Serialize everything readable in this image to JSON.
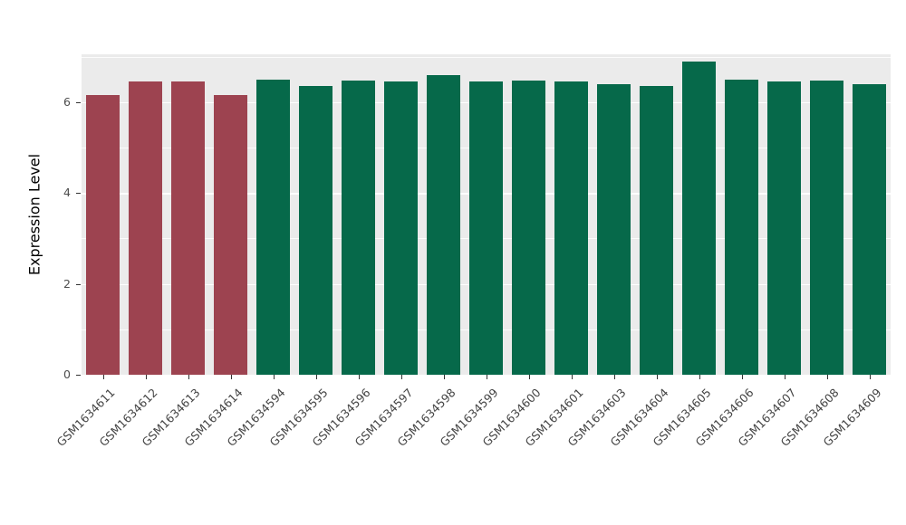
{
  "chart_data": {
    "type": "bar",
    "title": "",
    "xlabel": "",
    "ylabel": "Expression Level",
    "ylim": [
      0,
      7.05
    ],
    "yticks": [
      0,
      2,
      4,
      6
    ],
    "yticks_minor": [
      1,
      3,
      5,
      7
    ],
    "grid": true,
    "legend_position": "none",
    "panel_bg": "#EBEBEB",
    "grid_color": "#FFFFFF",
    "categories": [
      "GSM1634611",
      "GSM1634612",
      "GSM1634613",
      "GSM1634614",
      "GSM1634594",
      "GSM1634595",
      "GSM1634596",
      "GSM1634597",
      "GSM1634598",
      "GSM1634599",
      "GSM1634600",
      "GSM1634601",
      "GSM1634603",
      "GSM1634604",
      "GSM1634605",
      "GSM1634606",
      "GSM1634607",
      "GSM1634608",
      "GSM1634609"
    ],
    "values": [
      6.15,
      6.45,
      6.45,
      6.15,
      6.5,
      6.35,
      6.48,
      6.45,
      6.6,
      6.45,
      6.48,
      6.45,
      6.4,
      6.35,
      6.9,
      6.5,
      6.45,
      6.48,
      6.4
    ],
    "bar_colors": [
      "#9D4350",
      "#9D4350",
      "#9D4350",
      "#9D4350",
      "#06694A",
      "#06694A",
      "#06694A",
      "#06694A",
      "#06694A",
      "#06694A",
      "#06694A",
      "#06694A",
      "#06694A",
      "#06694A",
      "#06694A",
      "#06694A",
      "#06694A",
      "#06694A",
      "#06694A"
    ],
    "group_colors": {
      "highlight": "#9D4350",
      "normal": "#06694A"
    }
  }
}
